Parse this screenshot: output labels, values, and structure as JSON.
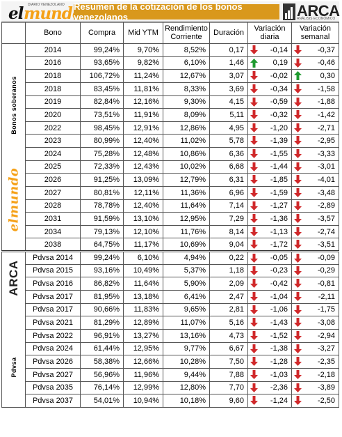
{
  "header": {
    "logo_left_tag": "DIARIO VENEZOLANO",
    "logo_left_el": "el",
    "logo_left_mundo": "mundo",
    "title": "Resumen de la cotización de los bonos venezolanos",
    "logo_right_word": "ARCA",
    "logo_right_sub": "ANÁLISIS ECONÓMICO"
  },
  "columns": [
    "Bono",
    "Compra",
    "Mid YTM",
    "Rendimiento Corriente",
    "Duración",
    "Variación diaria",
    "Variación semanal"
  ],
  "sections": [
    {
      "label": "Bonos soberanos",
      "rows": [
        {
          "bono": "2014",
          "compra": "99,24%",
          "ytm": "9,70%",
          "rend": "8,52%",
          "dur": "0,17",
          "vd": "-0,14",
          "vd_dir": "down",
          "vs": "-0,37",
          "vs_dir": "down"
        },
        {
          "bono": "2016",
          "compra": "93,65%",
          "ytm": "9,82%",
          "rend": "6,10%",
          "dur": "1,46",
          "vd": "0,19",
          "vd_dir": "up",
          "vs": "-0,46",
          "vs_dir": "down"
        },
        {
          "bono": "2018",
          "compra": "106,72%",
          "ytm": "11,24%",
          "rend": "12,67%",
          "dur": "3,07",
          "vd": "-0,02",
          "vd_dir": "down",
          "vs": "0,30",
          "vs_dir": "up"
        },
        {
          "bono": "2018",
          "compra": "83,45%",
          "ytm": "11,81%",
          "rend": "8,33%",
          "dur": "3,69",
          "vd": "-0,34",
          "vd_dir": "down",
          "vs": "-1,58",
          "vs_dir": "down"
        },
        {
          "bono": "2019",
          "compra": "82,84%",
          "ytm": "12,16%",
          "rend": "9,30%",
          "dur": "4,15",
          "vd": "-0,59",
          "vd_dir": "down",
          "vs": "-1,88",
          "vs_dir": "down"
        },
        {
          "bono": "2020",
          "compra": "73,51%",
          "ytm": "11,91%",
          "rend": "8,09%",
          "dur": "5,11",
          "vd": "-0,32",
          "vd_dir": "down",
          "vs": "-1,42",
          "vs_dir": "down"
        },
        {
          "bono": "2022",
          "compra": "98,45%",
          "ytm": "12,91%",
          "rend": "12,86%",
          "dur": "4,95",
          "vd": "-1,20",
          "vd_dir": "down",
          "vs": "-2,71",
          "vs_dir": "down"
        },
        {
          "bono": "2023",
          "compra": "80,99%",
          "ytm": "12,40%",
          "rend": "11,02%",
          "dur": "5,78",
          "vd": "-1,39",
          "vd_dir": "down",
          "vs": "-2,95",
          "vs_dir": "down"
        },
        {
          "bono": "2024",
          "compra": "75,28%",
          "ytm": "12,48%",
          "rend": "10,86%",
          "dur": "6,36",
          "vd": "-1,55",
          "vd_dir": "down",
          "vs": "-3,33",
          "vs_dir": "down"
        },
        {
          "bono": "2025",
          "compra": "72,33%",
          "ytm": "12,43%",
          "rend": "10,02%",
          "dur": "6,68",
          "vd": "-1,44",
          "vd_dir": "down",
          "vs": "-3,01",
          "vs_dir": "down"
        },
        {
          "bono": "2026",
          "compra": "91,25%",
          "ytm": "13,09%",
          "rend": "12,79%",
          "dur": "6,31",
          "vd": "-1,85",
          "vd_dir": "down",
          "vs": "-4,01",
          "vs_dir": "down"
        },
        {
          "bono": "2027",
          "compra": "80,81%",
          "ytm": "12,11%",
          "rend": "11,36%",
          "dur": "6,96",
          "vd": "-1,59",
          "vd_dir": "down",
          "vs": "-3,48",
          "vs_dir": "down"
        },
        {
          "bono": "2028",
          "compra": "78,78%",
          "ytm": "12,40%",
          "rend": "11,64%",
          "dur": "7,14",
          "vd": "-1,27",
          "vd_dir": "down",
          "vs": "-2,89",
          "vs_dir": "down"
        },
        {
          "bono": "2031",
          "compra": "91,59%",
          "ytm": "13,10%",
          "rend": "12,95%",
          "dur": "7,29",
          "vd": "-1,36",
          "vd_dir": "down",
          "vs": "-3,57",
          "vs_dir": "down"
        },
        {
          "bono": "2034",
          "compra": "79,13%",
          "ytm": "12,10%",
          "rend": "11,76%",
          "dur": "8,14",
          "vd": "-1,13",
          "vd_dir": "down",
          "vs": "-2,74",
          "vs_dir": "down"
        },
        {
          "bono": "2038",
          "compra": "64,75%",
          "ytm": "11,17%",
          "rend": "10,69%",
          "dur": "9,04",
          "vd": "-1,72",
          "vd_dir": "down",
          "vs": "-3,51",
          "vs_dir": "down"
        }
      ]
    },
    {
      "label": "Pdvsa",
      "rows": [
        {
          "bono": "Pdvsa 2014",
          "compra": "99,24%",
          "ytm": "6,10%",
          "rend": "4,94%",
          "dur": "0,22",
          "vd": "-0,05",
          "vd_dir": "down",
          "vs": "-0,09",
          "vs_dir": "down"
        },
        {
          "bono": "Pdvsa 2015",
          "compra": "93,16%",
          "ytm": "10,49%",
          "rend": "5,37%",
          "dur": "1,18",
          "vd": "-0,23",
          "vd_dir": "down",
          "vs": "-0,29",
          "vs_dir": "down"
        },
        {
          "bono": "Pdvsa 2016",
          "compra": "86,82%",
          "ytm": "11,64%",
          "rend": "5,90%",
          "dur": "2,09",
          "vd": "-0,42",
          "vd_dir": "down",
          "vs": "-0,81",
          "vs_dir": "down"
        },
        {
          "bono": "Pdvsa 2017",
          "compra": "81,95%",
          "ytm": "13,18%",
          "rend": "6,41%",
          "dur": "2,47",
          "vd": "-1,04",
          "vd_dir": "down",
          "vs": "-2,11",
          "vs_dir": "down"
        },
        {
          "bono": "Pdvsa 2017",
          "compra": "90,66%",
          "ytm": "11,83%",
          "rend": "9,65%",
          "dur": "2,81",
          "vd": "-1,06",
          "vd_dir": "down",
          "vs": "-1,75",
          "vs_dir": "down"
        },
        {
          "bono": "Pdvsa 2021",
          "compra": "81,29%",
          "ytm": "12,89%",
          "rend": "11,07%",
          "dur": "5,16",
          "vd": "-1,43",
          "vd_dir": "down",
          "vs": "-3,08",
          "vs_dir": "down"
        },
        {
          "bono": "Pdvsa 2022",
          "compra": "96,91%",
          "ytm": "13,27%",
          "rend": "13,16%",
          "dur": "4,73",
          "vd": "-1,52",
          "vd_dir": "down",
          "vs": "-2,94",
          "vs_dir": "down"
        },
        {
          "bono": "Pdvsa 2024",
          "compra": "61,44%",
          "ytm": "12,95%",
          "rend": "9,77%",
          "dur": "6,67",
          "vd": "-1,38",
          "vd_dir": "down",
          "vs": "-3,27",
          "vs_dir": "down"
        },
        {
          "bono": "Pdvsa 2026",
          "compra": "58,38%",
          "ytm": "12,66%",
          "rend": "10,28%",
          "dur": "7,50",
          "vd": "-1,28",
          "vd_dir": "down",
          "vs": "-2,35",
          "vs_dir": "down"
        },
        {
          "bono": "Pdvsa 2027",
          "compra": "56,96%",
          "ytm": "11,96%",
          "rend": "9,44%",
          "dur": "7,88",
          "vd": "-1,03",
          "vd_dir": "down",
          "vs": "-2,18",
          "vs_dir": "down"
        },
        {
          "bono": "Pdvsa 2035",
          "compra": "76,14%",
          "ytm": "12,99%",
          "rend": "12,80%",
          "dur": "7,70",
          "vd": "-2,36",
          "vd_dir": "down",
          "vs": "-3,89",
          "vs_dir": "down"
        },
        {
          "bono": "Pdvsa 2037",
          "compra": "54,01%",
          "ytm": "10,94%",
          "rend": "10,18%",
          "dur": "9,60",
          "vd": "-1,24",
          "vd_dir": "down",
          "vs": "-2,50",
          "vs_dir": "down"
        }
      ]
    }
  ],
  "side_logos": {
    "elmundo": "elmundo",
    "arca": "ARCA"
  },
  "colors": {
    "up": "#1e9a2e",
    "down": "#d0282a",
    "title_bg": "#d9981c",
    "mundo": "#f5a016"
  }
}
